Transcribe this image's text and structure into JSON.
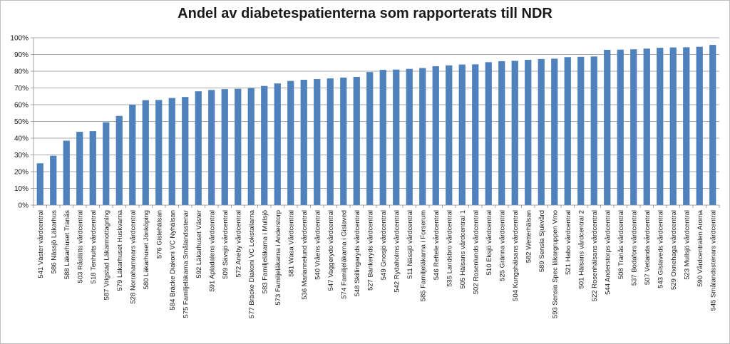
{
  "chart_data": {
    "type": "bar",
    "title": "Andel av diabetespatienterna som rapporterats till NDR",
    "xlabel": "",
    "ylabel": "",
    "ylim": [
      0,
      100
    ],
    "yticks": [
      "0%",
      "10%",
      "20%",
      "30%",
      "40%",
      "50%",
      "60%",
      "70%",
      "80%",
      "90%",
      "100%"
    ],
    "grid": true,
    "legend": "none",
    "bar_color": "#4f81bd",
    "categories": [
      "541 Väster vårdcentral",
      "586 Nässjö Läkarhus",
      "588 Läkarhuset Tranås",
      "503 Råslätts vårdcentral",
      "518 Tenhults vårdcentral",
      "587 Vrigstad Läkarmottagning",
      "579 Läkarhuset Huskvarna",
      "528 Norrahammars vårdcentral",
      "580 Läkarhuset Jönköping",
      "576 Gislehälsan",
      "584 Bräcke Diakoni VC Nyhälsan",
      "575 Familjeläkarna Smålandsstenar",
      "592 Läkarhuset Väster",
      "591 Apladalens vårdcentral",
      "509 Sävsjö vårdcentral",
      "572 Aneby vårdcentral",
      "577 Bräcke Diakoni VC Lokstallarna",
      "583 Familjeläkarna i Mullsjö",
      "573 Familjeläkarna i Anderstorp",
      "581 Wasa Vårdcentral",
      "536 Mariannelund vårdcentral",
      "540 Vråens vårdcentral",
      "547 Vaggerydo vårdcentral",
      "574 Familjeläkarna i Gislaved",
      "548 Skillingaryds vårdcentral",
      "527 Bankeryds vårdcentral",
      "549 Gnosjö vårdcentral",
      "542 Rydaholms vårdcentral",
      "511 Nässjö vårdcentral",
      "585 Familjeläkarna i Forserum",
      "546 Reftele vårdcentral",
      "535 Landsbro vårdcentral",
      "505 Hälsans vårdcentral 1",
      "502 Rosenlunds vårdcentral",
      "510 Eksjö vårdcentral",
      "525 Gränna vårdcentral",
      "504 Kungshälsans vårdcentral",
      "582 Wetterhälsan",
      "589 Sensia Sjukvård",
      "593 Sensia Spec läkargruppen Vmo",
      "521 Habo vårdcentral",
      "501 Hälsans vårdcentral 2",
      "522 Rosenhälsans vårdcentral",
      "544 Anderstorps vårdcentral",
      "508 Tranås vårdcentral",
      "537 Bodafors vårdcentral",
      "507 Vetlanda vårdcentral",
      "543 Gislaveds vårdcentral",
      "529 Oxnehaga vårdcentral",
      "523 Mullsjö vårdcentral",
      "590 Vårdcentralen Aroma",
      "545 Smålandsstenars vårdcentral"
    ],
    "values": [
      25,
      29.5,
      38.5,
      43.8,
      44.2,
      49.5,
      53.3,
      60,
      62.7,
      62.8,
      64,
      64.6,
      68,
      68.8,
      69.3,
      69.5,
      70,
      71.2,
      72.7,
      74.2,
      74.9,
      75.3,
      75.7,
      76.2,
      76.6,
      79.5,
      80.8,
      81,
      81.4,
      81.9,
      83,
      83.5,
      84,
      84.1,
      85.4,
      86,
      86.2,
      86.8,
      87.3,
      87.5,
      88.4,
      88.6,
      88.8,
      92.8,
      92.9,
      93.1,
      93.5,
      94,
      94.2,
      94.3,
      94.6,
      95.7
    ]
  }
}
